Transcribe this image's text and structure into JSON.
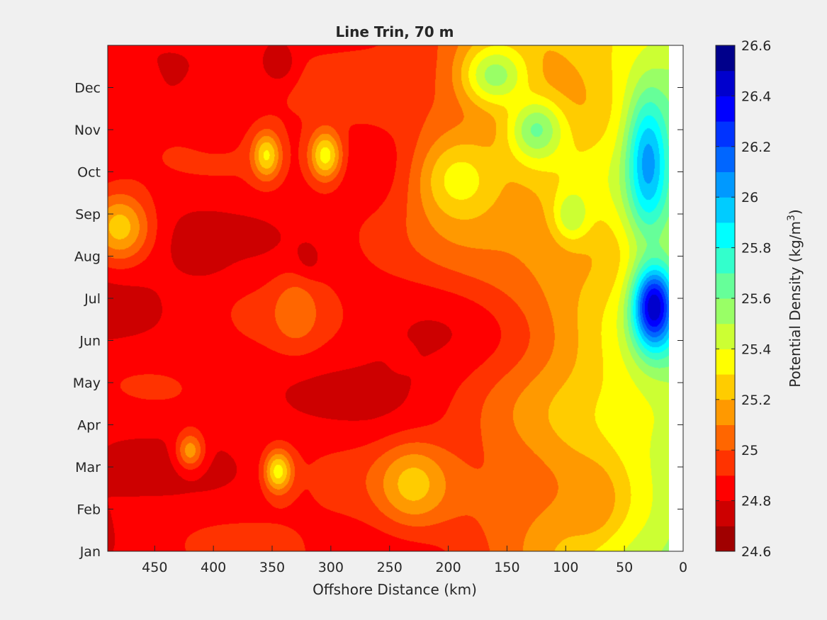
{
  "chart_data": {
    "type": "heatmap",
    "plot_style": "filled contour",
    "title": "Line Trin, 70 m",
    "xlabel": "Offshore Distance (km)",
    "x_reversed": true,
    "xlim": [
      0,
      490
    ],
    "xticks": [
      450,
      400,
      350,
      300,
      250,
      200,
      150,
      100,
      50,
      0
    ],
    "ylabel": "",
    "ylim": [
      1,
      13
    ],
    "yticks": [
      {
        "month": 1,
        "label": "Jan"
      },
      {
        "month": 2,
        "label": "Feb"
      },
      {
        "month": 3,
        "label": "Mar"
      },
      {
        "month": 4,
        "label": "Apr"
      },
      {
        "month": 5,
        "label": "May"
      },
      {
        "month": 6,
        "label": "Jun"
      },
      {
        "month": 7,
        "label": "Jul"
      },
      {
        "month": 8,
        "label": "Aug"
      },
      {
        "month": 9,
        "label": "Sep"
      },
      {
        "month": 10,
        "label": "Oct"
      },
      {
        "month": 11,
        "label": "Nov"
      },
      {
        "month": 12,
        "label": "Dec"
      }
    ],
    "data_coverage_km": [
      12,
      490
    ],
    "colorbar": {
      "label_prefix": "Potential Density (kg/m",
      "label_exponent": "3",
      "label_suffix": ")",
      "range": [
        24.6,
        26.6
      ],
      "tick_values": [
        24.6,
        24.8,
        25,
        25.2,
        25.4,
        25.6,
        25.8,
        26,
        26.2,
        26.4,
        26.6
      ],
      "tick_labels": [
        "24.6",
        "24.8",
        "25",
        "25.2",
        "25.4",
        "25.6",
        "25.8",
        "26",
        "26.2",
        "26.4",
        "26.6"
      ],
      "levels": [
        {
          "min": 24.6,
          "max": 24.7,
          "color": "#a00000"
        },
        {
          "min": 24.7,
          "max": 24.8,
          "color": "#cd0000"
        },
        {
          "min": 24.8,
          "max": 24.9,
          "color": "#ff0000"
        },
        {
          "min": 24.9,
          "max": 25.0,
          "color": "#ff3300"
        },
        {
          "min": 25.0,
          "max": 25.1,
          "color": "#ff6600"
        },
        {
          "min": 25.1,
          "max": 25.2,
          "color": "#ff9900"
        },
        {
          "min": 25.2,
          "max": 25.3,
          "color": "#ffcc00"
        },
        {
          "min": 25.3,
          "max": 25.4,
          "color": "#ffff00"
        },
        {
          "min": 25.4,
          "max": 25.5,
          "color": "#ccff33"
        },
        {
          "min": 25.5,
          "max": 25.6,
          "color": "#99ff66"
        },
        {
          "min": 25.6,
          "max": 25.7,
          "color": "#66ff99"
        },
        {
          "min": 25.7,
          "max": 25.8,
          "color": "#33ffcc"
        },
        {
          "min": 25.8,
          "max": 25.9,
          "color": "#00ffff"
        },
        {
          "min": 25.9,
          "max": 26.0,
          "color": "#00ccff"
        },
        {
          "min": 26.0,
          "max": 26.1,
          "color": "#0099ff"
        },
        {
          "min": 26.1,
          "max": 26.2,
          "color": "#0066ff"
        },
        {
          "min": 26.2,
          "max": 26.3,
          "color": "#0033ff"
        },
        {
          "min": 26.3,
          "max": 26.4,
          "color": "#0000ff"
        },
        {
          "min": 26.4,
          "max": 26.5,
          "color": "#0000cd"
        },
        {
          "min": 26.5,
          "max": 26.6,
          "color": "#00008b"
        }
      ]
    },
    "features": [
      {
        "x": 470,
        "month": 12.0,
        "value": 24.85,
        "spread_km": 30,
        "spread_months": 1.0
      },
      {
        "x": 400,
        "month": 11.5,
        "value": 24.85,
        "spread_km": 30,
        "spread_months": 1.0
      },
      {
        "x": 345,
        "month": 12.6,
        "value": 24.72,
        "spread_km": 15,
        "spread_months": 0.5
      },
      {
        "x": 355,
        "month": 10.4,
        "value": 25.32,
        "spread_km": 12,
        "spread_months": 0.55
      },
      {
        "x": 305,
        "month": 10.4,
        "value": 25.35,
        "spread_km": 14,
        "spread_months": 0.6
      },
      {
        "x": 480,
        "month": 8.7,
        "value": 25.25,
        "spread_km": 25,
        "spread_months": 0.8
      },
      {
        "x": 410,
        "month": 8.2,
        "value": 24.7,
        "spread_km": 20,
        "spread_months": 0.55
      },
      {
        "x": 320,
        "month": 7.9,
        "value": 24.75,
        "spread_km": 12,
        "spread_months": 0.45
      },
      {
        "x": 330,
        "month": 6.7,
        "value": 25.08,
        "spread_km": 20,
        "spread_months": 0.8
      },
      {
        "x": 240,
        "month": 5.6,
        "value": 24.85,
        "spread_km": 10,
        "spread_months": 0.3
      },
      {
        "x": 230,
        "month": 2.6,
        "value": 25.25,
        "spread_km": 30,
        "spread_months": 0.9
      },
      {
        "x": 190,
        "month": 9.8,
        "value": 25.35,
        "spread_km": 40,
        "spread_months": 1.2
      },
      {
        "x": 160,
        "month": 12.3,
        "value": 25.55,
        "spread_km": 30,
        "spread_months": 0.8
      },
      {
        "x": 125,
        "month": 11.0,
        "value": 25.62,
        "spread_km": 25,
        "spread_months": 0.8
      },
      {
        "x": 95,
        "month": 9.0,
        "value": 25.5,
        "spread_km": 15,
        "spread_months": 0.6
      },
      {
        "x": 25,
        "month": 6.8,
        "value": 26.5,
        "spread_km": 18,
        "spread_months": 1.0
      },
      {
        "x": 30,
        "month": 10.2,
        "value": 26.05,
        "spread_km": 18,
        "spread_months": 1.6
      },
      {
        "x": 80,
        "month": 2.2,
        "value": 25.1,
        "spread_km": 22,
        "spread_months": 0.8
      },
      {
        "x": 345,
        "month": 2.9,
        "value": 25.35,
        "spread_km": 12,
        "spread_months": 0.5
      },
      {
        "x": 420,
        "month": 3.4,
        "value": 25.15,
        "spread_km": 12,
        "spread_months": 0.45
      }
    ]
  }
}
